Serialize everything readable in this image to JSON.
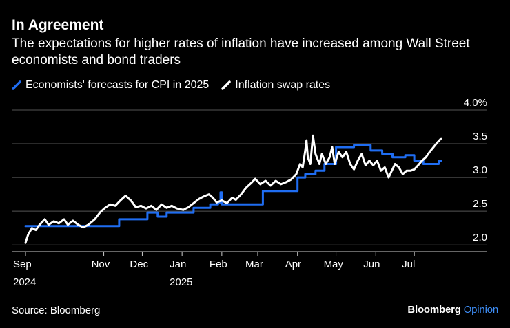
{
  "header": {
    "title": "In Agreement",
    "subtitle": "The expectations for higher rates of inflation have increased among Wall Street economists and bond traders"
  },
  "footer": {
    "source": "Source: Bloomberg",
    "brand_main": "Bloomberg",
    "brand_sub": "Opinion"
  },
  "colors": {
    "background": "#000000",
    "economists": "#1f6df2",
    "swaps": "#ffffff",
    "grid": "#555555"
  },
  "chart_data": {
    "type": "line",
    "title": "In Agreement",
    "xlabel": "",
    "ylabel": "",
    "ylim": [
      1.9,
      4.0
    ],
    "y_ticks": [
      "2.0",
      "2.5",
      "3.0",
      "3.5",
      "4.0%"
    ],
    "y_tick_values": [
      2.0,
      2.5,
      3.0,
      3.5,
      4.0
    ],
    "x_domain": [
      "2024-09-01",
      "2025-07-31"
    ],
    "x_ticks": [
      {
        "date": "2024-09-01",
        "label": "Sep",
        "sublabel": "2024"
      },
      {
        "date": "2024-11-01",
        "label": "Nov",
        "sublabel": ""
      },
      {
        "date": "2024-12-01",
        "label": "Dec",
        "sublabel": ""
      },
      {
        "date": "2025-01-01",
        "label": "Jan",
        "sublabel": "2025"
      },
      {
        "date": "2025-02-01",
        "label": "Feb",
        "sublabel": ""
      },
      {
        "date": "2025-03-01",
        "label": "Mar",
        "sublabel": ""
      },
      {
        "date": "2025-04-01",
        "label": "Apr",
        "sublabel": ""
      },
      {
        "date": "2025-05-01",
        "label": "May",
        "sublabel": ""
      },
      {
        "date": "2025-06-01",
        "label": "Jun",
        "sublabel": ""
      },
      {
        "date": "2025-07-01",
        "label": "Jul",
        "sublabel": ""
      }
    ],
    "legend": "top-left",
    "series": [
      {
        "name": "Economists' forecasts for CPI in 2025",
        "color": "#1f6df2",
        "step": true,
        "points": [
          [
            "2024-09-01",
            2.28
          ],
          [
            "2024-10-31",
            2.28
          ],
          [
            "2024-11-13",
            2.38
          ],
          [
            "2024-12-05",
            2.48
          ],
          [
            "2024-12-13",
            2.42
          ],
          [
            "2024-12-20",
            2.48
          ],
          [
            "2025-01-10",
            2.55
          ],
          [
            "2025-01-23",
            2.6
          ],
          [
            "2025-01-29",
            2.63
          ],
          [
            "2025-01-31",
            2.78
          ],
          [
            "2025-02-01",
            2.6
          ],
          [
            "2025-02-28",
            2.6
          ],
          [
            "2025-03-05",
            2.8
          ],
          [
            "2025-03-31",
            2.8
          ],
          [
            "2025-04-01",
            3.0
          ],
          [
            "2025-04-07",
            3.05
          ],
          [
            "2025-04-15",
            3.1
          ],
          [
            "2025-04-22",
            3.2
          ],
          [
            "2025-05-01",
            3.45
          ],
          [
            "2025-05-15",
            3.48
          ],
          [
            "2025-05-28",
            3.4
          ],
          [
            "2025-06-06",
            3.35
          ],
          [
            "2025-06-14",
            3.3
          ],
          [
            "2025-06-24",
            3.33
          ],
          [
            "2025-07-01",
            3.25
          ],
          [
            "2025-07-08",
            3.2
          ],
          [
            "2025-07-18",
            3.2
          ],
          [
            "2025-07-20",
            3.25
          ],
          [
            "2025-07-22",
            3.25
          ]
        ]
      },
      {
        "name": "Inflation swap rates",
        "color": "#ffffff",
        "step": false,
        "points": [
          [
            "2024-09-01",
            2.03
          ],
          [
            "2024-09-03",
            2.15
          ],
          [
            "2024-09-06",
            2.25
          ],
          [
            "2024-09-09",
            2.22
          ],
          [
            "2024-09-12",
            2.3
          ],
          [
            "2024-09-16",
            2.38
          ],
          [
            "2024-09-19",
            2.3
          ],
          [
            "2024-09-23",
            2.35
          ],
          [
            "2024-09-27",
            2.32
          ],
          [
            "2024-10-01",
            2.38
          ],
          [
            "2024-10-04",
            2.3
          ],
          [
            "2024-10-08",
            2.36
          ],
          [
            "2024-10-12",
            2.3
          ],
          [
            "2024-10-16",
            2.26
          ],
          [
            "2024-10-20",
            2.3
          ],
          [
            "2024-10-25",
            2.38
          ],
          [
            "2024-10-29",
            2.48
          ],
          [
            "2024-11-02",
            2.55
          ],
          [
            "2024-11-06",
            2.6
          ],
          [
            "2024-11-10",
            2.58
          ],
          [
            "2024-11-14",
            2.66
          ],
          [
            "2024-11-18",
            2.73
          ],
          [
            "2024-11-22",
            2.66
          ],
          [
            "2024-11-26",
            2.56
          ],
          [
            "2024-11-30",
            2.58
          ],
          [
            "2024-12-04",
            2.54
          ],
          [
            "2024-12-08",
            2.58
          ],
          [
            "2024-12-12",
            2.52
          ],
          [
            "2024-12-16",
            2.6
          ],
          [
            "2024-12-20",
            2.55
          ],
          [
            "2024-12-24",
            2.58
          ],
          [
            "2024-12-28",
            2.54
          ],
          [
            "2025-01-02",
            2.52
          ],
          [
            "2025-01-06",
            2.56
          ],
          [
            "2025-01-10",
            2.62
          ],
          [
            "2025-01-14",
            2.68
          ],
          [
            "2025-01-18",
            2.72
          ],
          [
            "2025-01-22",
            2.75
          ],
          [
            "2025-01-25",
            2.7
          ],
          [
            "2025-01-28",
            2.63
          ],
          [
            "2025-02-01",
            2.66
          ],
          [
            "2025-02-05",
            2.62
          ],
          [
            "2025-02-09",
            2.7
          ],
          [
            "2025-02-12",
            2.67
          ],
          [
            "2025-02-16",
            2.75
          ],
          [
            "2025-02-20",
            2.85
          ],
          [
            "2025-02-24",
            2.92
          ],
          [
            "2025-02-27",
            2.98
          ],
          [
            "2025-03-03",
            2.9
          ],
          [
            "2025-03-07",
            2.95
          ],
          [
            "2025-03-11",
            2.88
          ],
          [
            "2025-03-15",
            2.95
          ],
          [
            "2025-03-19",
            2.9
          ],
          [
            "2025-03-23",
            2.93
          ],
          [
            "2025-03-27",
            2.97
          ],
          [
            "2025-03-31",
            3.05
          ],
          [
            "2025-04-03",
            3.2
          ],
          [
            "2025-04-05",
            3.15
          ],
          [
            "2025-04-07",
            3.4
          ],
          [
            "2025-04-08",
            3.55
          ],
          [
            "2025-04-09",
            3.3
          ],
          [
            "2025-04-11",
            3.2
          ],
          [
            "2025-04-13",
            3.62
          ],
          [
            "2025-04-15",
            3.35
          ],
          [
            "2025-04-18",
            3.2
          ],
          [
            "2025-04-20",
            3.35
          ],
          [
            "2025-04-23",
            3.2
          ],
          [
            "2025-04-26",
            3.3
          ],
          [
            "2025-04-28",
            3.45
          ],
          [
            "2025-04-30",
            3.2
          ],
          [
            "2025-05-03",
            3.38
          ],
          [
            "2025-05-06",
            3.3
          ],
          [
            "2025-05-09",
            3.38
          ],
          [
            "2025-05-12",
            3.2
          ],
          [
            "2025-05-15",
            3.12
          ],
          [
            "2025-05-18",
            3.25
          ],
          [
            "2025-05-21",
            3.35
          ],
          [
            "2025-05-24",
            3.18
          ],
          [
            "2025-05-27",
            3.25
          ],
          [
            "2025-05-30",
            3.18
          ],
          [
            "2025-06-02",
            3.25
          ],
          [
            "2025-06-05",
            3.1
          ],
          [
            "2025-06-08",
            3.15
          ],
          [
            "2025-06-11",
            3.0
          ],
          [
            "2025-06-13",
            3.08
          ],
          [
            "2025-06-16",
            3.2
          ],
          [
            "2025-06-19",
            3.15
          ],
          [
            "2025-06-22",
            3.05
          ],
          [
            "2025-06-25",
            3.1
          ],
          [
            "2025-06-28",
            3.1
          ],
          [
            "2025-07-01",
            3.12
          ],
          [
            "2025-07-04",
            3.18
          ],
          [
            "2025-07-07",
            3.25
          ],
          [
            "2025-07-10",
            3.3
          ],
          [
            "2025-07-13",
            3.38
          ],
          [
            "2025-07-16",
            3.45
          ],
          [
            "2025-07-19",
            3.52
          ],
          [
            "2025-07-22",
            3.58
          ]
        ]
      }
    ]
  }
}
